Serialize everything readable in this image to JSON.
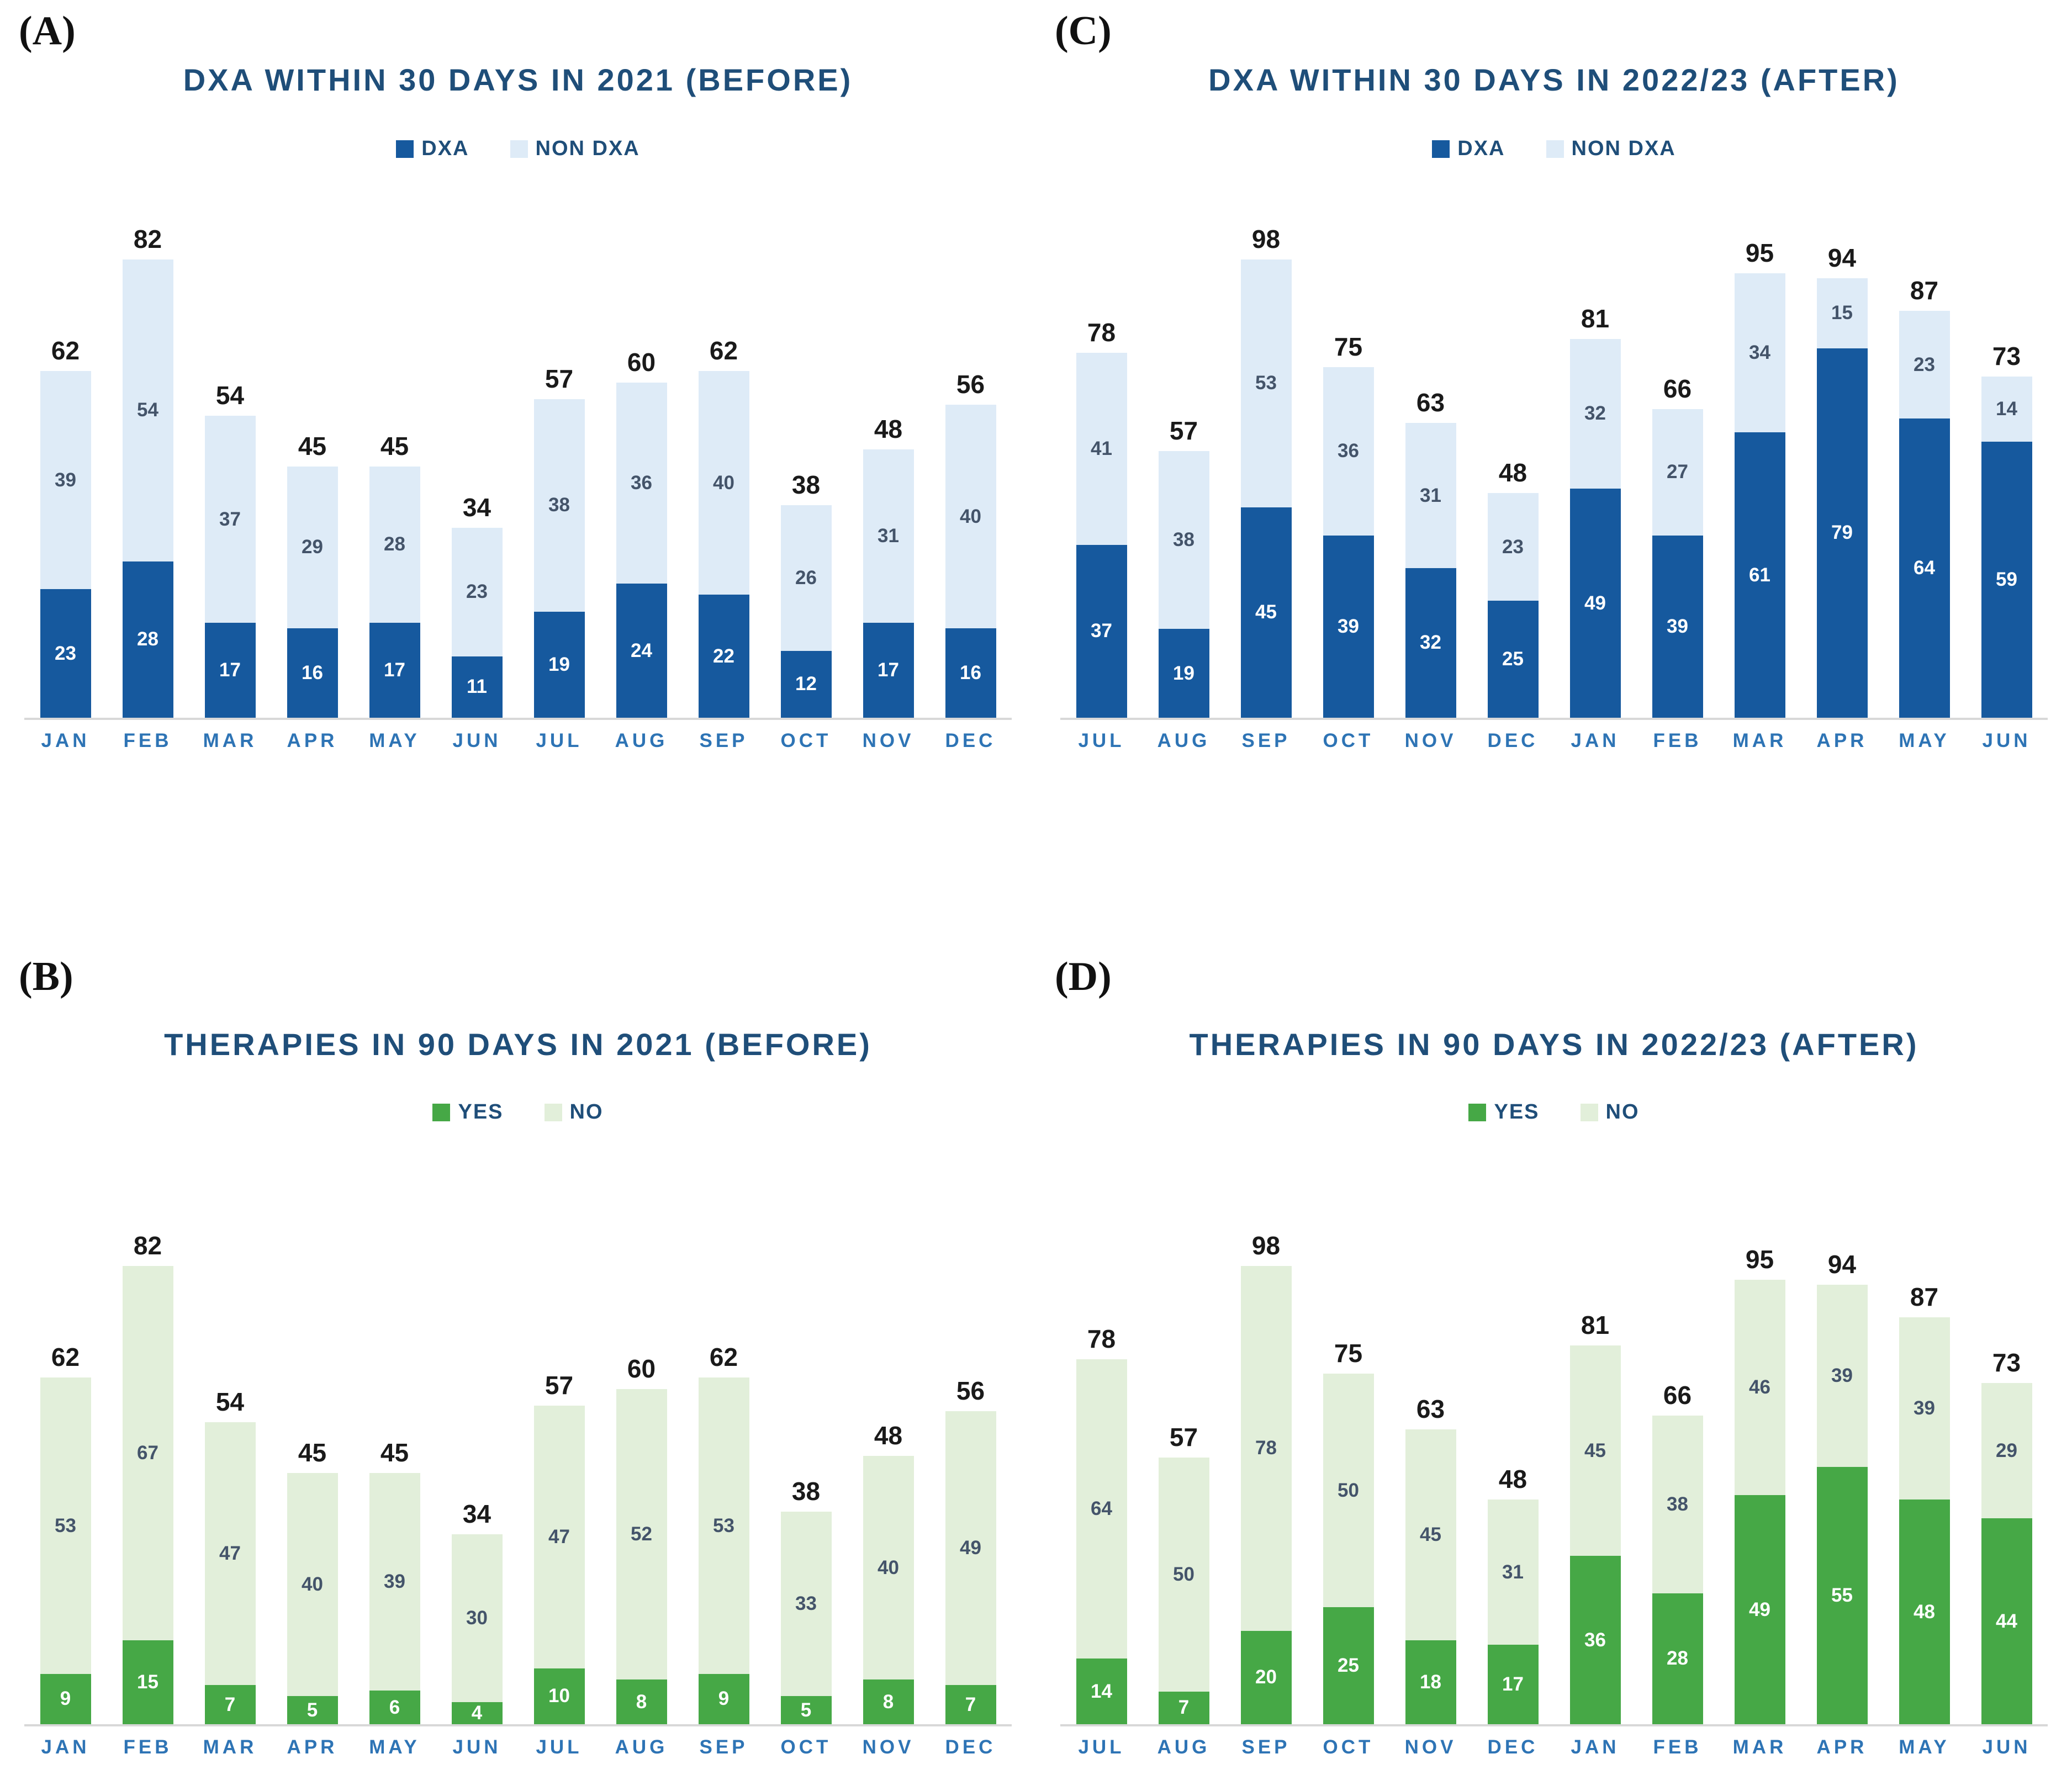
{
  "panels": [
    {
      "id": "A",
      "letter": "(A)"
    },
    {
      "id": "C",
      "letter": "(C)"
    },
    {
      "id": "B",
      "letter": "(B)"
    },
    {
      "id": "D",
      "letter": "(D)"
    }
  ],
  "colors": {
    "dark_blue": "#16599E",
    "light_blue": "#DEEBF7",
    "dark_green": "#46A846",
    "light_green": "#E2EFDA",
    "title_navy": "#1F4E79",
    "month_blue": "#2E74B5",
    "inner_label_gray": "#44546A",
    "inner_label_white": "#FFFFFF",
    "axis_gray": "#D8D8D8",
    "total_black": "#1a1a1a"
  },
  "chart_data": [
    {
      "panel": "A",
      "type": "bar",
      "stacked": true,
      "title": "DXA WITHIN 30 DAYS IN 2021 (BEFORE)",
      "legend_position": "top",
      "grid": false,
      "ylim": [
        0,
        82
      ],
      "categories": [
        "JAN",
        "FEB",
        "MAR",
        "APR",
        "MAY",
        "JUN",
        "JUL",
        "AUG",
        "SEP",
        "OCT",
        "NOV",
        "DEC"
      ],
      "series": [
        {
          "name": "DXA",
          "color": "#16599E",
          "text_color": "#FFFFFF",
          "values": [
            23,
            28,
            17,
            16,
            17,
            11,
            19,
            24,
            22,
            12,
            17,
            16
          ]
        },
        {
          "name": "NON DXA",
          "color": "#DEEBF7",
          "text_color": "#44546A",
          "values": [
            39,
            54,
            37,
            29,
            28,
            23,
            38,
            36,
            40,
            26,
            31,
            40
          ]
        }
      ],
      "totals": [
        62,
        82,
        54,
        45,
        45,
        34,
        57,
        60,
        62,
        38,
        48,
        56
      ]
    },
    {
      "panel": "C",
      "type": "bar",
      "stacked": true,
      "title": "DXA WITHIN 30 DAYS IN 2022/23 (AFTER)",
      "legend_position": "top",
      "grid": false,
      "ylim": [
        0,
        98
      ],
      "categories": [
        "JUL",
        "AUG",
        "SEP",
        "OCT",
        "NOV",
        "DEC",
        "JAN",
        "FEB",
        "MAR",
        "APR",
        "MAY",
        "JUN"
      ],
      "series": [
        {
          "name": "DXA",
          "color": "#16599E",
          "text_color": "#FFFFFF",
          "values": [
            37,
            19,
            45,
            39,
            32,
            25,
            49,
            39,
            61,
            79,
            64,
            59
          ]
        },
        {
          "name": "NON DXA",
          "color": "#DEEBF7",
          "text_color": "#44546A",
          "values": [
            41,
            38,
            53,
            36,
            31,
            23,
            32,
            27,
            34,
            15,
            23,
            14
          ]
        }
      ],
      "totals": [
        78,
        57,
        98,
        75,
        63,
        48,
        81,
        66,
        95,
        94,
        87,
        73
      ]
    },
    {
      "panel": "B",
      "type": "bar",
      "stacked": true,
      "title": "THERAPIES IN 90 DAYS IN 2021 (BEFORE)",
      "legend_position": "top",
      "grid": false,
      "ylim": [
        0,
        82
      ],
      "categories": [
        "JAN",
        "FEB",
        "MAR",
        "APR",
        "MAY",
        "JUN",
        "JUL",
        "AUG",
        "SEP",
        "OCT",
        "NOV",
        "DEC"
      ],
      "series": [
        {
          "name": "YES",
          "color": "#46A846",
          "text_color": "#FFFFFF",
          "values": [
            9,
            15,
            7,
            5,
            6,
            4,
            10,
            8,
            9,
            5,
            8,
            7
          ]
        },
        {
          "name": "NO",
          "color": "#E2EFDA",
          "text_color": "#44546A",
          "values": [
            53,
            67,
            47,
            40,
            39,
            30,
            47,
            52,
            53,
            33,
            40,
            49
          ]
        }
      ],
      "totals": [
        62,
        82,
        54,
        45,
        45,
        34,
        57,
        60,
        62,
        38,
        48,
        56
      ]
    },
    {
      "panel": "D",
      "type": "bar",
      "stacked": true,
      "title": "THERAPIES IN 90 DAYS IN 2022/23 (AFTER)",
      "legend_position": "top",
      "grid": false,
      "ylim": [
        0,
        98
      ],
      "categories": [
        "JUL",
        "AUG",
        "SEP",
        "OCT",
        "NOV",
        "DEC",
        "JAN",
        "FEB",
        "MAR",
        "APR",
        "MAY",
        "JUN"
      ],
      "series": [
        {
          "name": "YES",
          "color": "#46A846",
          "text_color": "#FFFFFF",
          "values": [
            14,
            7,
            20,
            25,
            18,
            17,
            36,
            28,
            49,
            55,
            48,
            44
          ]
        },
        {
          "name": "NO",
          "color": "#E2EFDA",
          "text_color": "#44546A",
          "values": [
            64,
            50,
            78,
            50,
            45,
            31,
            45,
            38,
            46,
            39,
            39,
            29
          ]
        }
      ],
      "totals": [
        78,
        57,
        98,
        75,
        63,
        48,
        81,
        66,
        95,
        94,
        87,
        73
      ]
    }
  ]
}
